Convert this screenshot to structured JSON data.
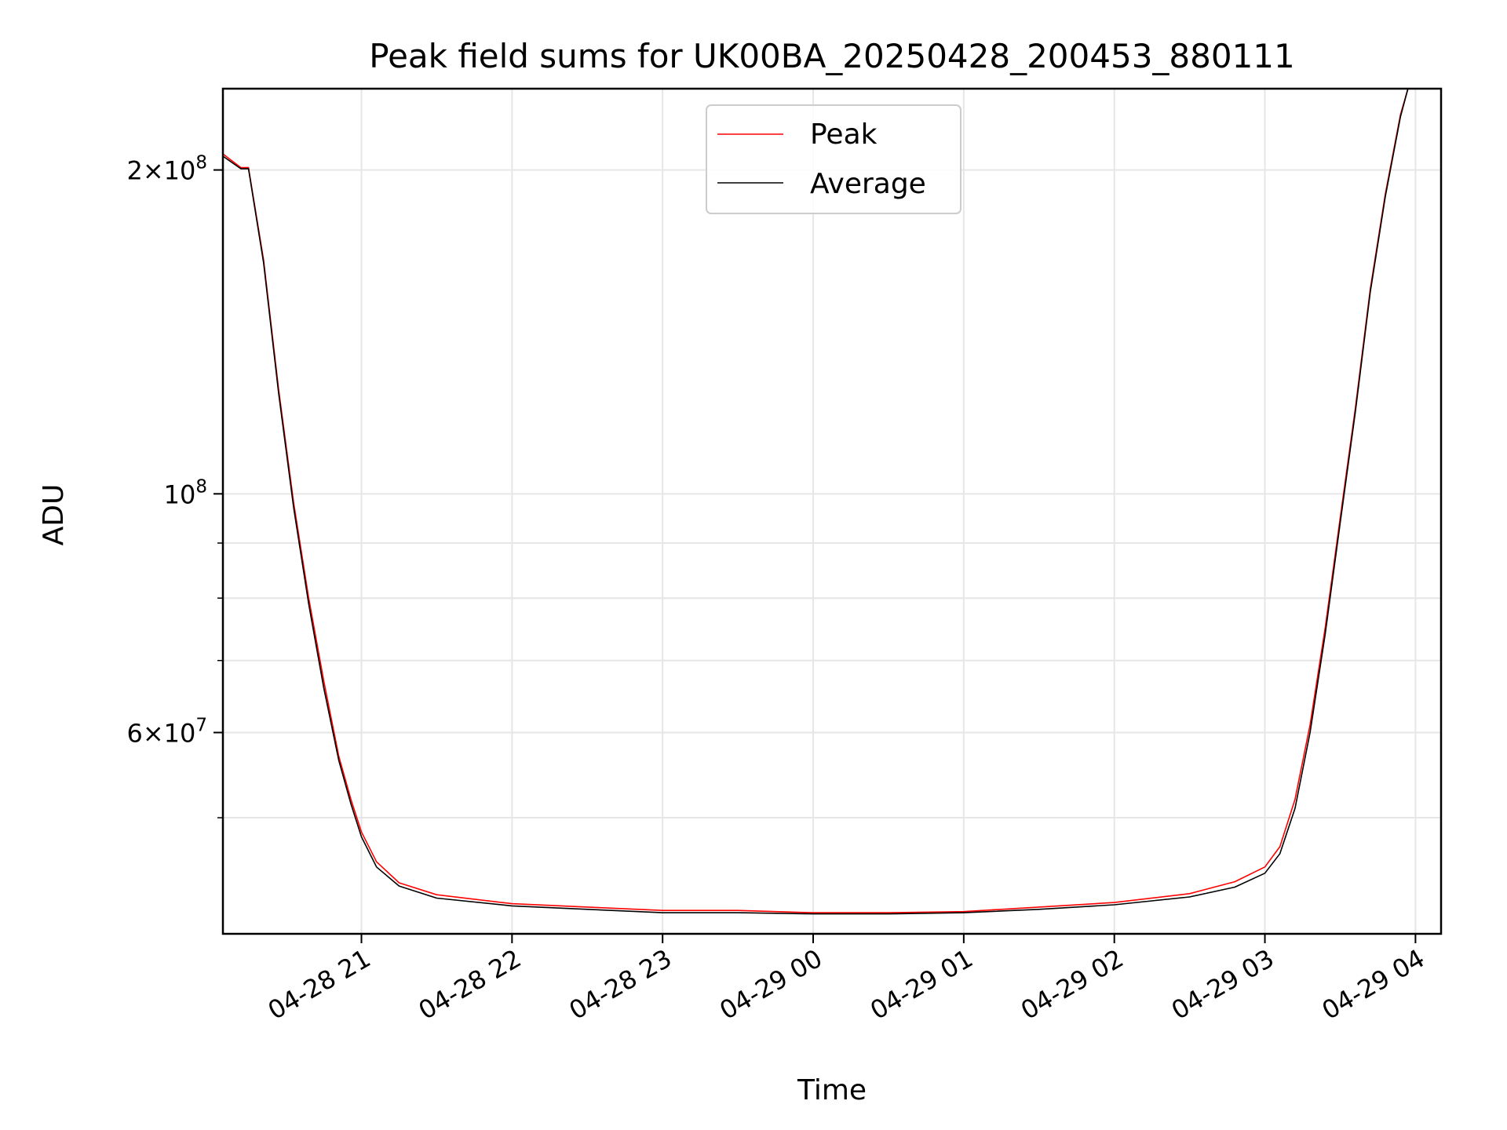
{
  "chart_data": {
    "type": "line",
    "title": "Peak field sums for UK00BA_20250428_200453_880111",
    "xlabel": "Time",
    "ylabel": "ADU",
    "y_scale": "log",
    "ylim": [
      39000000,
      238000000
    ],
    "x_unit": "hours since 04-28 20:00",
    "xlim": [
      0.08,
      8.17
    ],
    "grid": true,
    "legend_position": "top-center",
    "x_ticks": [
      {
        "value": 1,
        "label": "04-28 21"
      },
      {
        "value": 2,
        "label": "04-28 22"
      },
      {
        "value": 3,
        "label": "04-28 23"
      },
      {
        "value": 4,
        "label": "04-29 00"
      },
      {
        "value": 5,
        "label": "04-29 01"
      },
      {
        "value": 6,
        "label": "04-29 02"
      },
      {
        "value": 7,
        "label": "04-29 03"
      },
      {
        "value": 8,
        "label": "04-29 04"
      }
    ],
    "y_ticks_labeled": [
      {
        "value": 200000000,
        "base": "2×10",
        "exp": "8"
      },
      {
        "value": 100000000,
        "base": "10",
        "exp": "8"
      },
      {
        "value": 60000000,
        "base": "6×10",
        "exp": "7"
      }
    ],
    "y_ticks_minor": [
      50000000,
      70000000,
      80000000,
      90000000
    ],
    "series": [
      {
        "name": "Peak",
        "color": "#ff0000",
        "x": [
          0.08,
          0.2,
          0.25,
          0.35,
          0.45,
          0.55,
          0.65,
          0.75,
          0.85,
          0.93,
          1.0,
          1.1,
          1.25,
          1.5,
          2.0,
          2.5,
          3.0,
          3.5,
          4.0,
          4.5,
          5.0,
          5.5,
          6.0,
          6.5,
          6.8,
          7.0,
          7.1,
          7.2,
          7.3,
          7.4,
          7.5,
          7.6,
          7.7,
          7.8,
          7.9,
          7.95,
          8.0,
          8.17
        ],
        "y": [
          207000000,
          201000000,
          201000000,
          165000000,
          125000000,
          98000000,
          80000000,
          67000000,
          57000000,
          52000000,
          48500000,
          45500000,
          43500000,
          42400000,
          41600000,
          41300000,
          41000000,
          41000000,
          40800000,
          40800000,
          40900000,
          41300000,
          41700000,
          42500000,
          43600000,
          45000000,
          47000000,
          52000000,
          61000000,
          75000000,
          95000000,
          120000000,
          155000000,
          190000000,
          225000000,
          238000000,
          238000000,
          238000000
        ]
      },
      {
        "name": "Average",
        "color": "#000000",
        "x": [
          0.08,
          0.2,
          0.25,
          0.35,
          0.45,
          0.55,
          0.65,
          0.75,
          0.85,
          0.93,
          1.0,
          1.1,
          1.25,
          1.5,
          2.0,
          2.5,
          3.0,
          3.5,
          4.0,
          4.5,
          5.0,
          5.5,
          6.0,
          6.5,
          6.8,
          7.0,
          7.1,
          7.2,
          7.3,
          7.4,
          7.5,
          7.6,
          7.7,
          7.8,
          7.9,
          7.95,
          8.0,
          8.17
        ],
        "y": [
          206000000,
          200500000,
          200500000,
          164000000,
          124000000,
          97000000,
          79000000,
          66000000,
          56500000,
          51500000,
          48000000,
          45000000,
          43200000,
          42100000,
          41400000,
          41100000,
          40800000,
          40800000,
          40700000,
          40700000,
          40800000,
          41100000,
          41500000,
          42200000,
          43100000,
          44400000,
          46300000,
          51000000,
          60000000,
          74000000,
          94000000,
          119000000,
          154000000,
          189000000,
          224000000,
          238000000,
          238000000,
          238000000
        ]
      }
    ]
  }
}
